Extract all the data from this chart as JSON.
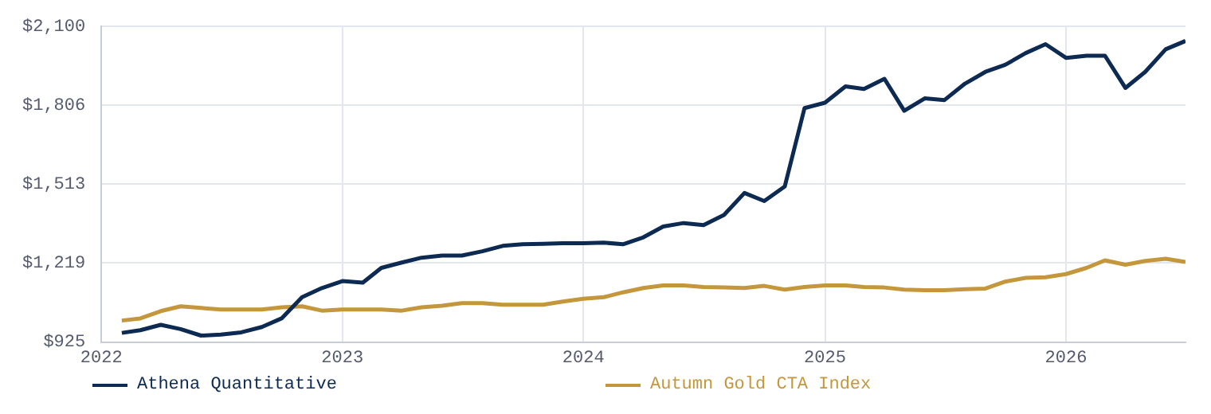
{
  "chart_data": {
    "type": "line",
    "x": [
      "2022-02",
      "2022-03",
      "2022-04",
      "2022-05",
      "2022-06",
      "2022-07",
      "2022-08",
      "2022-09",
      "2022-10",
      "2022-11",
      "2022-12",
      "2023-01",
      "2023-02",
      "2023-03",
      "2023-04",
      "2023-05",
      "2023-06",
      "2023-07",
      "2023-08",
      "2023-09",
      "2023-10",
      "2023-11",
      "2023-12",
      "2024-01",
      "2024-02",
      "2024-03",
      "2024-04",
      "2024-05",
      "2024-06",
      "2024-07",
      "2024-08",
      "2024-09",
      "2024-10",
      "2024-11",
      "2024-12",
      "2025-01",
      "2025-02",
      "2025-03",
      "2025-04",
      "2025-05",
      "2025-06",
      "2025-07",
      "2025-08",
      "2025-09",
      "2025-10",
      "2025-11",
      "2025-12",
      "2026-01",
      "2026-02",
      "2026-03",
      "2026-04",
      "2026-05",
      "2026-06",
      "2026-07"
    ],
    "series": [
      {
        "name": "Athena Quantitative",
        "color": "#0d2a52",
        "values": [
          959,
          969,
          989,
          973,
          949,
          953,
          961,
          981,
          1013,
          1092,
          1126,
          1152,
          1146,
          1201,
          1221,
          1239,
          1247,
          1247,
          1263,
          1283,
          1289,
          1291,
          1293,
          1293,
          1295,
          1289,
          1315,
          1355,
          1368,
          1360,
          1398,
          1480,
          1450,
          1504,
          1796,
          1816,
          1877,
          1867,
          1905,
          1786,
          1832,
          1826,
          1887,
          1931,
          1957,
          2001,
          2034,
          1983,
          1991,
          1991,
          1871,
          1931,
          2015,
          2046
        ]
      },
      {
        "name": "Autumn Gold CTA Index",
        "color": "#c4973d",
        "values": [
          1005,
          1013,
          1040,
          1058,
          1052,
          1046,
          1046,
          1046,
          1054,
          1058,
          1042,
          1046,
          1046,
          1046,
          1042,
          1054,
          1060,
          1070,
          1070,
          1064,
          1064,
          1064,
          1076,
          1086,
          1092,
          1110,
          1126,
          1136,
          1136,
          1130,
          1128,
          1126,
          1134,
          1120,
          1130,
          1136,
          1136,
          1130,
          1128,
          1120,
          1118,
          1118,
          1122,
          1124,
          1150,
          1164,
          1166,
          1178,
          1201,
          1229,
          1213,
          1227,
          1235,
          1223
        ]
      }
    ],
    "xlim": [
      "2022-01",
      "2026-07"
    ],
    "xticks": [
      {
        "value": "2022",
        "label": "2022"
      },
      {
        "value": "2023",
        "label": "2023"
      },
      {
        "value": "2024",
        "label": "2024"
      },
      {
        "value": "2025",
        "label": "2025"
      },
      {
        "value": "2026",
        "label": "2026"
      }
    ],
    "ylim": [
      925,
      2100
    ],
    "yticks": [
      {
        "value": 925,
        "label": "$925"
      },
      {
        "value": 1219,
        "label": "$1,219"
      },
      {
        "value": 1513,
        "label": "$1,513"
      },
      {
        "value": 1806,
        "label": "$1,806"
      },
      {
        "value": 2100,
        "label": "$2,100"
      }
    ],
    "grid": true,
    "legend": "bottom",
    "marker": "none",
    "line_style": "solid"
  }
}
